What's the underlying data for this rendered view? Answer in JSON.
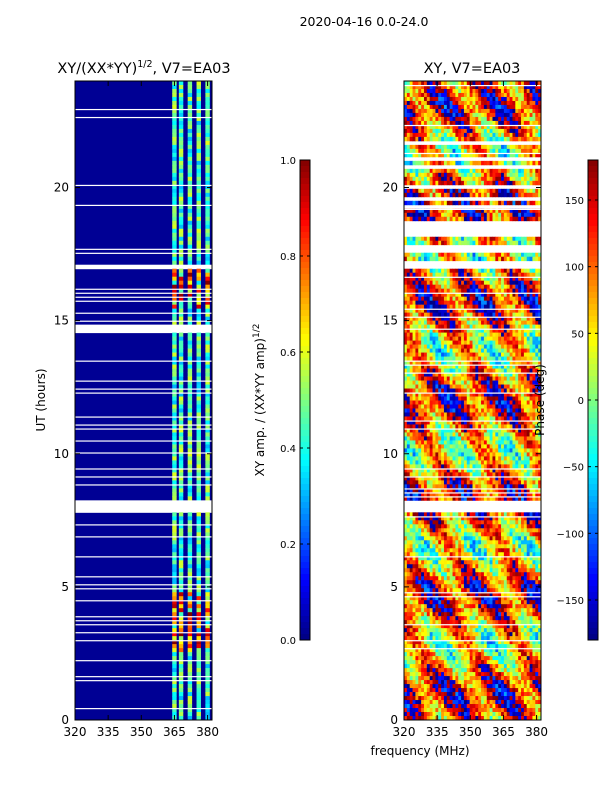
{
  "figure": {
    "suptitle": "2020-04-16 0.0-24.0",
    "xlabel": "frequency (MHz)"
  },
  "chart_data": [
    {
      "type": "heatmap",
      "title_main": "XY/(XX*YY)",
      "title_exp": "1/2",
      "title_tail": ", V7=EA03",
      "xlabel": "",
      "ylabel": "UT (hours)",
      "xlim": [
        320,
        382
      ],
      "ylim": [
        0,
        24
      ],
      "xticks": [
        320,
        335,
        350,
        365,
        380
      ],
      "yticks": [
        0,
        5,
        10,
        15,
        20
      ],
      "active_channels": [
        [
          364,
          366
        ],
        [
          367,
          369
        ],
        [
          371,
          373
        ],
        [
          375,
          377
        ],
        [
          379,
          381
        ]
      ],
      "gap_bands": [
        [
          7.8,
          8.2
        ],
        [
          16.9,
          17.1
        ],
        [
          14.6,
          14.9
        ]
      ],
      "colorbar": {
        "label_main": "XY amp. / (XX*YY amp)",
        "label_exp": "1/2",
        "range": [
          0.0,
          1.0
        ],
        "ticks": [
          "0.0",
          "0.2",
          "0.4",
          "0.6",
          "0.8",
          "1.0"
        ],
        "colormap": "jet"
      }
    },
    {
      "type": "heatmap",
      "title": "XY, V7=EA03",
      "xlabel": "",
      "ylabel": "",
      "xlim": [
        320,
        382
      ],
      "ylim": [
        0,
        24
      ],
      "xticks": [
        320,
        335,
        350,
        365,
        380
      ],
      "yticks": [
        0,
        5,
        10,
        15,
        20
      ],
      "gap_bands": [
        [
          7.8,
          8.2
        ]
      ],
      "colorbar": {
        "label": "Phase (deg)",
        "range": [
          -180,
          180
        ],
        "ticks": [
          "150",
          "100",
          "50",
          "0",
          "−50",
          "−100",
          "−150"
        ],
        "tick_values": [
          150,
          100,
          50,
          0,
          -50,
          -100,
          -150
        ],
        "colormap": "jet"
      }
    }
  ]
}
